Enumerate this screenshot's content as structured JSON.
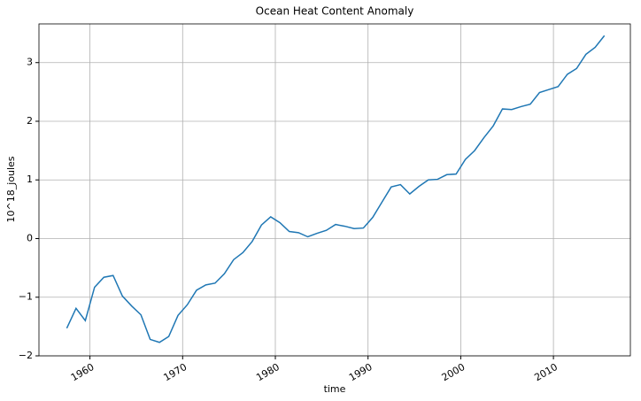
{
  "chart_data": {
    "type": "line",
    "title": "Ocean Heat Content Anomaly",
    "x_label": "time",
    "y_label": "10^18_joules",
    "x": [
      1957.5,
      1958.5,
      1959.5,
      1960.5,
      1961.5,
      1962.5,
      1963.5,
      1964.5,
      1965.5,
      1966.5,
      1967.5,
      1968.5,
      1969.5,
      1970.5,
      1971.5,
      1972.5,
      1973.5,
      1974.5,
      1975.5,
      1976.5,
      1977.5,
      1978.5,
      1979.5,
      1980.5,
      1981.5,
      1982.5,
      1983.5,
      1984.5,
      1985.5,
      1986.5,
      1987.5,
      1988.5,
      1989.5,
      1990.5,
      1991.5,
      1992.5,
      1993.5,
      1994.5,
      1995.5,
      1996.5,
      1997.5,
      1998.5,
      1999.5,
      2000.5,
      2001.5,
      2002.5,
      2003.5,
      2004.5,
      2005.5,
      2006.5,
      2007.5,
      2008.5,
      2009.5,
      2010.5,
      2011.5,
      2012.5,
      2013.5,
      2014.5,
      2015.5
    ],
    "series": [
      {
        "color": "#1f77b4",
        "values": [
          -1.53,
          -1.19,
          -1.4,
          -0.83,
          -0.66,
          -0.63,
          -0.98,
          -1.15,
          -1.3,
          -1.72,
          -1.77,
          -1.67,
          -1.31,
          -1.13,
          -0.88,
          -0.79,
          -0.76,
          -0.6,
          -0.36,
          -0.24,
          -0.05,
          0.23,
          0.37,
          0.27,
          0.12,
          0.1,
          0.03,
          0.09,
          0.14,
          0.24,
          0.21,
          0.17,
          0.18,
          0.36,
          0.62,
          0.88,
          0.92,
          0.76,
          0.89,
          1.0,
          1.01,
          1.09,
          1.1,
          1.35,
          1.5,
          1.72,
          1.92,
          2.21,
          2.2,
          2.25,
          2.29,
          2.49,
          2.54,
          2.59,
          2.8,
          2.9,
          3.14,
          3.26,
          3.46
        ]
      }
    ],
    "xlim": [
      1954.5,
      2018.3
    ],
    "xticks": [
      1960,
      1970,
      1980,
      1990,
      2000,
      2010
    ],
    "ylim": [
      -2,
      3.66
    ],
    "yticks": [
      {
        "value": -2,
        "label": "−2"
      },
      {
        "value": -1,
        "label": "−1"
      },
      0,
      1,
      2,
      3
    ],
    "grid": true
  }
}
